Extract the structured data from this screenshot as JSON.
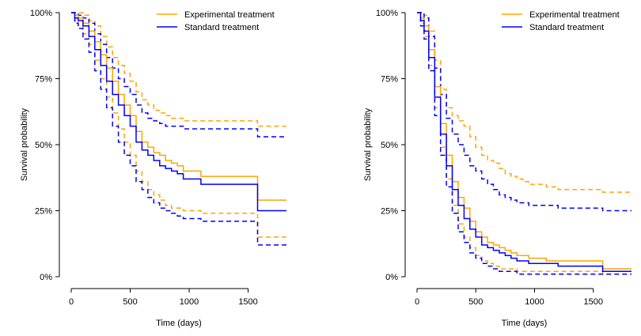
{
  "colors": {
    "experimental": "#FFA500",
    "standard": "#0000FF",
    "axis": "#000000",
    "background": "#FFFFFF"
  },
  "chart_data": [
    {
      "type": "line",
      "xlabel": "Time (days)",
      "ylabel": "Survival probability",
      "xlim": [
        0,
        1825
      ],
      "ylim": [
        0,
        1
      ],
      "x_ticks": [
        0,
        500,
        1000,
        1500
      ],
      "x_tick_labels": [
        "0",
        "500",
        "1000",
        "1500"
      ],
      "y_ticks": [
        0,
        0.25,
        0.5,
        0.75,
        1
      ],
      "y_tick_labels": [
        "0%",
        "25%",
        "50%",
        "75%",
        "100%"
      ],
      "legend": {
        "position": "top-right",
        "entries": [
          "Experimental treatment",
          "Standard treatment"
        ]
      },
      "grid": false,
      "series": [
        {
          "name": "Experimental treatment",
          "color_key": "experimental",
          "x": [
            0,
            30,
            60,
            100,
            150,
            200,
            250,
            300,
            350,
            400,
            450,
            500,
            550,
            600,
            650,
            700,
            750,
            800,
            850,
            900,
            950,
            1000,
            1100,
            1200,
            1300,
            1400,
            1500,
            1570,
            1580,
            1700,
            1825
          ],
          "estimate": [
            1.0,
            0.99,
            0.98,
            0.96,
            0.93,
            0.89,
            0.84,
            0.79,
            0.74,
            0.69,
            0.65,
            0.61,
            0.55,
            0.51,
            0.49,
            0.47,
            0.46,
            0.44,
            0.43,
            0.42,
            0.4,
            0.4,
            0.38,
            0.38,
            0.38,
            0.38,
            0.38,
            0.38,
            0.29,
            0.29,
            0.29
          ],
          "lower": [
            1.0,
            0.97,
            0.95,
            0.92,
            0.88,
            0.82,
            0.75,
            0.68,
            0.62,
            0.56,
            0.51,
            0.46,
            0.4,
            0.36,
            0.33,
            0.31,
            0.29,
            0.27,
            0.26,
            0.26,
            0.25,
            0.25,
            0.24,
            0.24,
            0.24,
            0.24,
            0.24,
            0.24,
            0.15,
            0.15,
            0.15
          ],
          "upper": [
            1.0,
            1.0,
            1.0,
            0.99,
            0.97,
            0.95,
            0.91,
            0.87,
            0.83,
            0.8,
            0.77,
            0.74,
            0.7,
            0.67,
            0.65,
            0.63,
            0.62,
            0.61,
            0.6,
            0.6,
            0.59,
            0.59,
            0.59,
            0.59,
            0.59,
            0.59,
            0.59,
            0.59,
            0.57,
            0.57,
            0.57
          ]
        },
        {
          "name": "Standard treatment",
          "color_key": "standard",
          "x": [
            0,
            30,
            60,
            100,
            150,
            200,
            250,
            300,
            350,
            400,
            450,
            500,
            550,
            600,
            650,
            700,
            750,
            800,
            850,
            900,
            950,
            1000,
            1100,
            1200,
            1300,
            1400,
            1500,
            1570,
            1580,
            1700,
            1825
          ],
          "estimate": [
            1.0,
            0.98,
            0.97,
            0.95,
            0.91,
            0.86,
            0.8,
            0.74,
            0.69,
            0.65,
            0.61,
            0.57,
            0.51,
            0.48,
            0.46,
            0.44,
            0.42,
            0.41,
            0.4,
            0.39,
            0.37,
            0.37,
            0.35,
            0.35,
            0.35,
            0.35,
            0.35,
            0.35,
            0.25,
            0.25,
            0.25
          ],
          "lower": [
            1.0,
            0.96,
            0.94,
            0.9,
            0.85,
            0.78,
            0.71,
            0.64,
            0.57,
            0.51,
            0.46,
            0.42,
            0.36,
            0.33,
            0.3,
            0.28,
            0.26,
            0.25,
            0.24,
            0.23,
            0.22,
            0.22,
            0.21,
            0.21,
            0.21,
            0.21,
            0.21,
            0.21,
            0.12,
            0.12,
            0.12
          ],
          "upper": [
            1.0,
            1.0,
            0.99,
            0.98,
            0.96,
            0.92,
            0.88,
            0.83,
            0.79,
            0.75,
            0.72,
            0.69,
            0.65,
            0.62,
            0.6,
            0.59,
            0.58,
            0.57,
            0.57,
            0.57,
            0.56,
            0.56,
            0.56,
            0.56,
            0.56,
            0.56,
            0.56,
            0.56,
            0.53,
            0.53,
            0.53
          ]
        }
      ]
    },
    {
      "type": "line",
      "xlabel": "Time (days)",
      "ylabel": "Survival probability",
      "xlim": [
        0,
        1825
      ],
      "ylim": [
        0,
        1
      ],
      "x_ticks": [
        0,
        500,
        1000,
        1500
      ],
      "x_tick_labels": [
        "0",
        "500",
        "1000",
        "1500"
      ],
      "y_ticks": [
        0,
        0.25,
        0.5,
        0.75,
        1
      ],
      "y_tick_labels": [
        "0%",
        "25%",
        "50%",
        "75%",
        "100%"
      ],
      "legend": {
        "position": "top-right",
        "entries": [
          "Experimental treatment",
          "Standard treatment"
        ]
      },
      "grid": false,
      "series": [
        {
          "name": "Experimental treatment",
          "color_key": "experimental",
          "x": [
            0,
            30,
            60,
            100,
            150,
            200,
            250,
            300,
            350,
            400,
            450,
            500,
            550,
            600,
            650,
            700,
            750,
            800,
            850,
            900,
            950,
            1000,
            1100,
            1200,
            1300,
            1400,
            1500,
            1570,
            1580,
            1700,
            1825
          ],
          "estimate": [
            1.0,
            0.98,
            0.95,
            0.86,
            0.72,
            0.58,
            0.46,
            0.36,
            0.3,
            0.26,
            0.21,
            0.17,
            0.15,
            0.13,
            0.12,
            0.11,
            0.1,
            0.09,
            0.08,
            0.08,
            0.07,
            0.07,
            0.06,
            0.06,
            0.06,
            0.06,
            0.06,
            0.06,
            0.03,
            0.03,
            0.03
          ],
          "lower": [
            1.0,
            0.96,
            0.91,
            0.8,
            0.64,
            0.49,
            0.37,
            0.27,
            0.2,
            0.15,
            0.11,
            0.08,
            0.06,
            0.05,
            0.04,
            0.03,
            0.03,
            0.03,
            0.02,
            0.02,
            0.02,
            0.02,
            0.02,
            0.02,
            0.02,
            0.02,
            0.02,
            0.02,
            0.01,
            0.01,
            0.01
          ],
          "upper": [
            1.0,
            1.0,
            0.99,
            0.93,
            0.82,
            0.71,
            0.64,
            0.61,
            0.59,
            0.57,
            0.53,
            0.49,
            0.46,
            0.44,
            0.43,
            0.41,
            0.39,
            0.38,
            0.37,
            0.36,
            0.35,
            0.35,
            0.34,
            0.33,
            0.33,
            0.33,
            0.33,
            0.33,
            0.32,
            0.32,
            0.32
          ]
        },
        {
          "name": "Standard treatment",
          "color_key": "standard",
          "x": [
            0,
            30,
            60,
            100,
            150,
            200,
            250,
            300,
            350,
            400,
            450,
            500,
            550,
            600,
            650,
            700,
            750,
            800,
            850,
            900,
            950,
            1000,
            1100,
            1200,
            1300,
            1400,
            1500,
            1570,
            1580,
            1700,
            1825
          ],
          "estimate": [
            1.0,
            0.97,
            0.93,
            0.83,
            0.68,
            0.54,
            0.42,
            0.33,
            0.27,
            0.22,
            0.18,
            0.15,
            0.12,
            0.11,
            0.1,
            0.09,
            0.08,
            0.07,
            0.06,
            0.06,
            0.05,
            0.05,
            0.05,
            0.04,
            0.04,
            0.04,
            0.04,
            0.04,
            0.02,
            0.02,
            0.02
          ],
          "lower": [
            1.0,
            0.95,
            0.9,
            0.78,
            0.61,
            0.46,
            0.34,
            0.24,
            0.17,
            0.13,
            0.09,
            0.07,
            0.05,
            0.04,
            0.03,
            0.02,
            0.02,
            0.02,
            0.01,
            0.01,
            0.01,
            0.01,
            0.01,
            0.01,
            0.01,
            0.01,
            0.01,
            0.01,
            0.01,
            0.01,
            0.01
          ],
          "upper": [
            1.0,
            1.0,
            0.98,
            0.91,
            0.79,
            0.69,
            0.6,
            0.54,
            0.5,
            0.46,
            0.42,
            0.4,
            0.37,
            0.35,
            0.33,
            0.31,
            0.3,
            0.29,
            0.28,
            0.28,
            0.27,
            0.27,
            0.27,
            0.26,
            0.26,
            0.26,
            0.26,
            0.26,
            0.25,
            0.25,
            0.25
          ]
        }
      ]
    }
  ]
}
